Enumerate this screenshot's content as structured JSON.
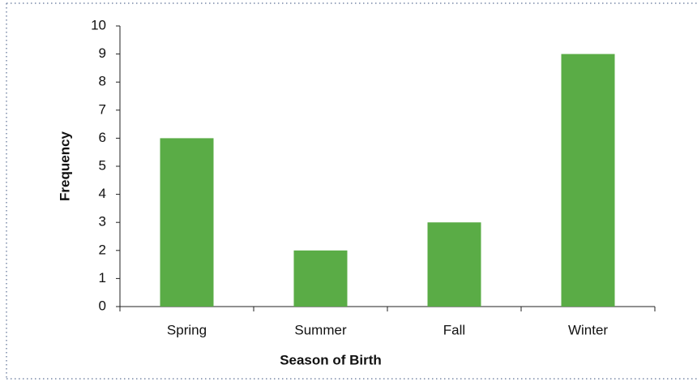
{
  "chart_data": {
    "type": "bar",
    "xlabel": "Season of Birth",
    "ylabel": "Frequency",
    "categories": [
      "Spring",
      "Summer",
      "Fall",
      "Winter"
    ],
    "values": [
      6,
      2,
      3,
      9
    ],
    "color": "#5aac46",
    "ylim": [
      0,
      10
    ],
    "yticks": [
      0,
      1,
      2,
      3,
      4,
      5,
      6,
      7,
      8,
      9,
      10
    ],
    "grid": false
  }
}
